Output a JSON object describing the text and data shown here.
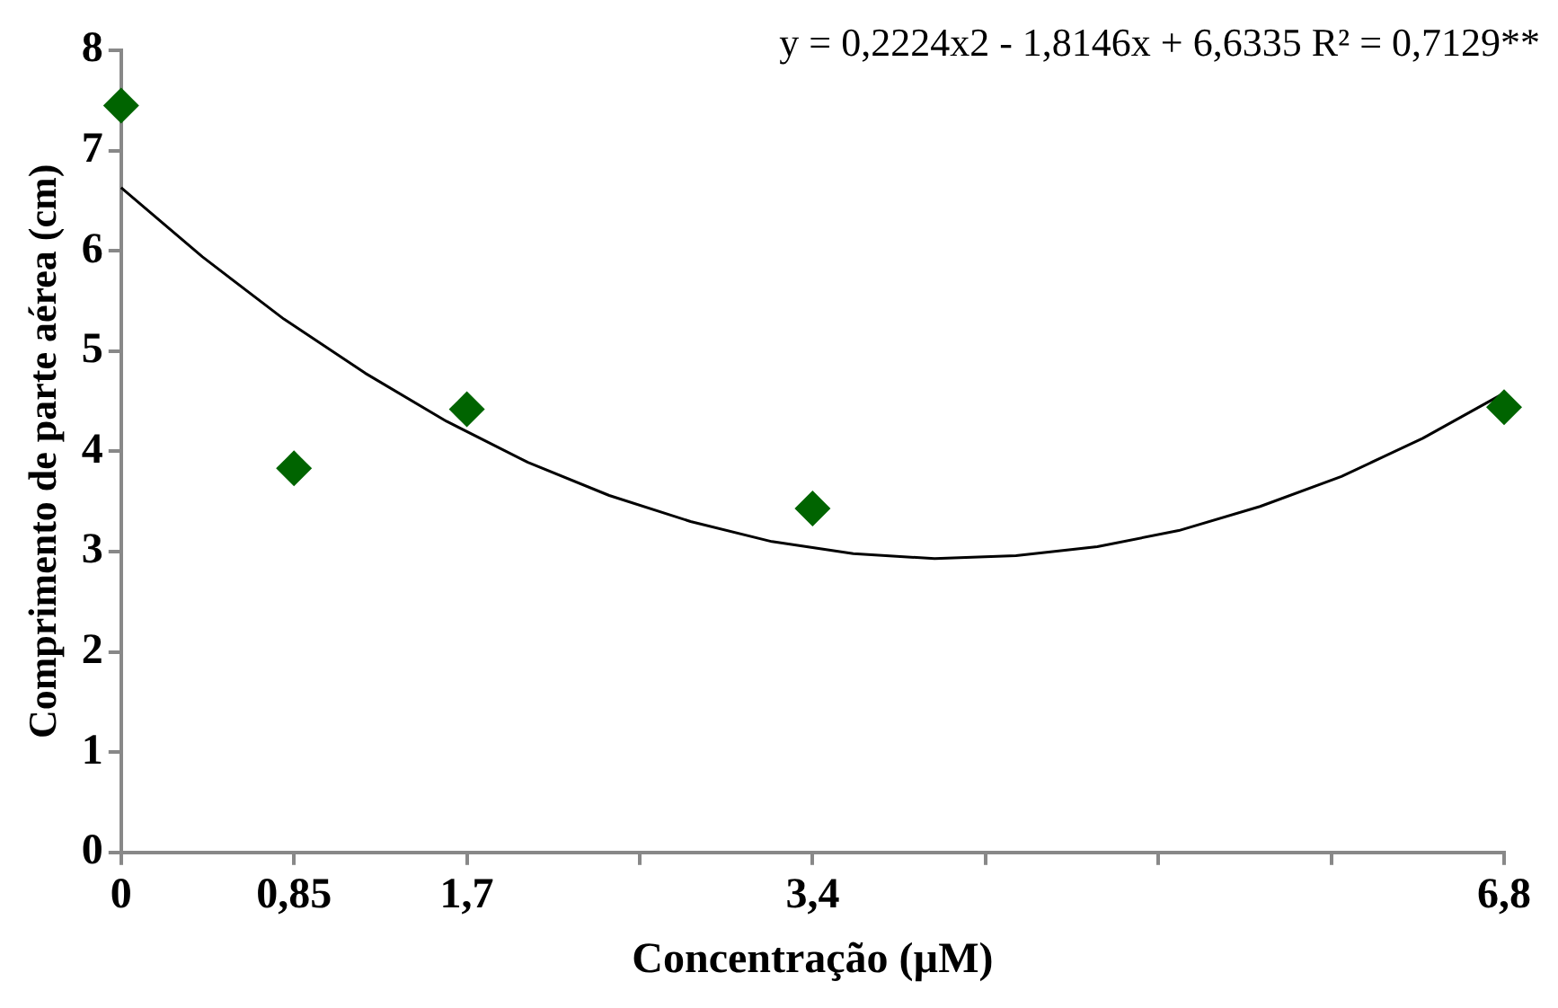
{
  "chart_data": {
    "type": "scatter",
    "xlabel": "Concentração (µM)",
    "ylabel": "Comprimento de parte aérea (cm)",
    "annotations": [
      "y = 0,2224x2 - 1,8146x + 6,6335 R² = 0,7129**"
    ],
    "xlim": [
      0,
      6.8
    ],
    "xticks": [
      {
        "value": 0,
        "label": "0"
      },
      {
        "value": 0.85,
        "label": "0,85"
      },
      {
        "value": 1.7,
        "label": "1,7"
      },
      {
        "value": 2.55,
        "label": null
      },
      {
        "value": 3.4,
        "label": "3,4"
      },
      {
        "value": 4.25,
        "label": null
      },
      {
        "value": 5.1,
        "label": null
      },
      {
        "value": 5.95,
        "label": null
      },
      {
        "value": 6.8,
        "label": "6,8"
      }
    ],
    "ylim": [
      0,
      8
    ],
    "yticks": [
      0,
      1,
      2,
      3,
      4,
      5,
      6,
      7,
      8
    ],
    "grid": false,
    "legend": false,
    "series": [
      {
        "marker": "diamond",
        "color": "#006400",
        "x": [
          0,
          0.85,
          1.7,
          3.4,
          6.8
        ],
        "values": [
          7.45,
          3.83,
          4.42,
          3.43,
          4.44
        ]
      },
      {
        "type": "line",
        "marker": "none",
        "line_style": "solid",
        "color": "#000000",
        "x": [
          0,
          0.4,
          0.8,
          1.2,
          1.6,
          2.0,
          2.4,
          2.8,
          3.2,
          3.6,
          4.0,
          4.4,
          4.8,
          5.2,
          5.6,
          6.0,
          6.4,
          6.8
        ],
        "values": [
          6.63,
          5.94,
          5.32,
          4.78,
          4.3,
          3.89,
          3.56,
          3.3,
          3.1,
          2.98,
          2.93,
          2.96,
          3.05,
          3.21,
          3.45,
          3.75,
          4.13,
          4.58
        ]
      }
    ]
  }
}
